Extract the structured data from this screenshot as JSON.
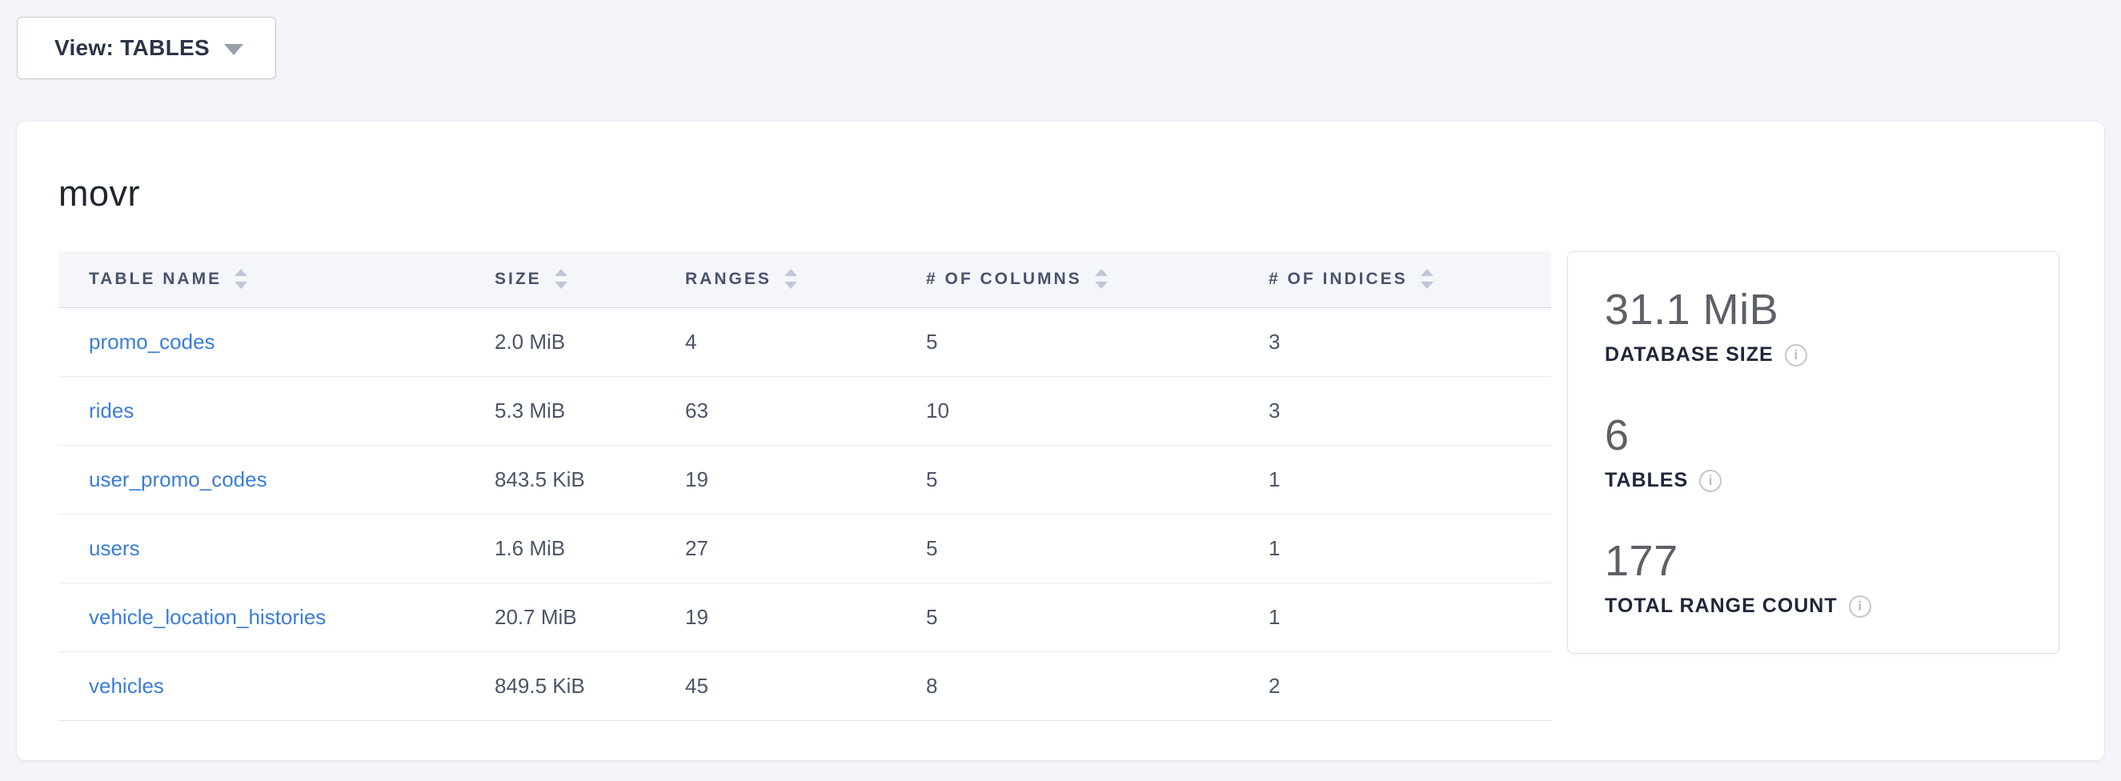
{
  "view_selector": {
    "label": "View: TABLES"
  },
  "database": {
    "name": "movr",
    "table": {
      "columns": [
        "TABLE NAME",
        "SIZE",
        "RANGES",
        "# OF COLUMNS",
        "# OF INDICES"
      ],
      "rows": [
        {
          "name": "promo_codes",
          "size": "2.0 MiB",
          "ranges": "4",
          "columns": "5",
          "indices": "3"
        },
        {
          "name": "rides",
          "size": "5.3 MiB",
          "ranges": "63",
          "columns": "10",
          "indices": "3"
        },
        {
          "name": "user_promo_codes",
          "size": "843.5 KiB",
          "ranges": "19",
          "columns": "5",
          "indices": "1"
        },
        {
          "name": "users",
          "size": "1.6 MiB",
          "ranges": "27",
          "columns": "5",
          "indices": "1"
        },
        {
          "name": "vehicle_location_histories",
          "size": "20.7 MiB",
          "ranges": "19",
          "columns": "5",
          "indices": "1"
        },
        {
          "name": "vehicles",
          "size": "849.5 KiB",
          "ranges": "45",
          "columns": "8",
          "indices": "2"
        }
      ]
    },
    "summary": {
      "stats": [
        {
          "value": "31.1 MiB",
          "label": "DATABASE SIZE"
        },
        {
          "value": "6",
          "label": "TABLES"
        },
        {
          "value": "177",
          "label": "TOTAL RANGE COUNT"
        }
      ]
    }
  },
  "colors": {
    "page_background": "#f4f5fa",
    "card_background": "#ffffff",
    "header_row_background": "#f4f6f9",
    "header_text": "#48536e",
    "link_blue": "#3b7dd8",
    "cell_text": "#4c5567",
    "stat_value_gray": "#5d6066",
    "stat_label_navy": "#20273a",
    "sort_arrow_gray": "#bfc7d8"
  }
}
